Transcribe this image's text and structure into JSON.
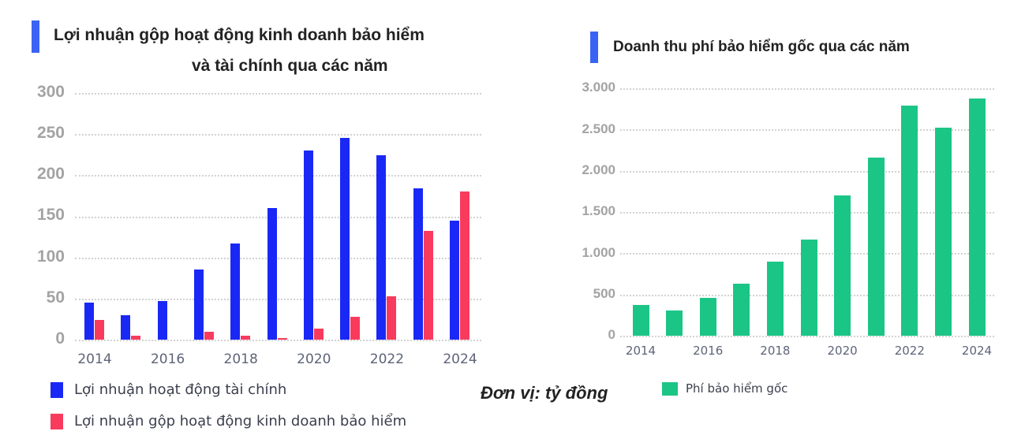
{
  "left_chart": {
    "title_line1": "Lợi nhuận gộp hoạt động kinh doanh bảo hiểm",
    "title_line2": "và tài chính qua các năm",
    "accent_color": "#3a63f5",
    "y_ticks": [
      "300",
      "250",
      "200",
      "150",
      "100",
      "50",
      "0"
    ],
    "x_ticks": [
      "2014",
      "2016",
      "2018",
      "2020",
      "2022",
      "2024"
    ],
    "legend": [
      {
        "label": "Lợi nhuận hoạt động tài chính",
        "color": "#1a28f5"
      },
      {
        "label": "Lợi nhuận gộp hoạt động kinh doanh bảo hiểm",
        "color": "#f83b5d"
      }
    ]
  },
  "right_chart": {
    "title": "Doanh thu phí bảo hiểm gốc qua các năm",
    "accent_color": "#3a63f5",
    "y_ticks": [
      "3.000",
      "2.500",
      "2.000",
      "1.500",
      "1.000",
      "500",
      "0"
    ],
    "x_ticks": [
      "2014",
      "2016",
      "2018",
      "2020",
      "2022",
      "2024"
    ],
    "legend": [
      {
        "label": "Phí bảo hiểm gốc",
        "color": "#1bc586"
      }
    ]
  },
  "unit_label": "Đơn vị: tỷ đồng",
  "chart_data": [
    {
      "type": "bar",
      "title": "Lợi nhuận gộp hoạt động kinh doanh bảo hiểm và tài chính qua các năm",
      "xlabel": "",
      "ylabel": "",
      "unit": "tỷ đồng",
      "ylim": [
        0,
        300
      ],
      "grid": true,
      "legend_position": "bottom",
      "categories": [
        "2014",
        "2015",
        "2016",
        "2017",
        "2018",
        "2019",
        "2020",
        "2021",
        "2022",
        "2023",
        "2024"
      ],
      "series": [
        {
          "name": "Lợi nhuận hoạt động tài chính",
          "color": "#1a28f5",
          "values": [
            45,
            30,
            47,
            85,
            117,
            160,
            230,
            245,
            224,
            184,
            145
          ]
        },
        {
          "name": "Lợi nhuận gộp hoạt động kinh doanh bảo hiểm",
          "color": "#f83b5d",
          "values": [
            24,
            5,
            0,
            10,
            5,
            2,
            13,
            28,
            53,
            132,
            180
          ]
        }
      ]
    },
    {
      "type": "bar",
      "title": "Doanh thu phí bảo hiểm gốc qua các năm",
      "xlabel": "",
      "ylabel": "",
      "unit": "tỷ đồng",
      "ylim": [
        0,
        3000
      ],
      "grid": true,
      "legend_position": "bottom",
      "categories": [
        "2014",
        "2015",
        "2016",
        "2017",
        "2018",
        "2019",
        "2020",
        "2021",
        "2022",
        "2023",
        "2024"
      ],
      "series": [
        {
          "name": "Phí bảo hiểm gốc",
          "color": "#1bc586",
          "values": [
            375,
            310,
            455,
            630,
            900,
            1170,
            1700,
            2160,
            2790,
            2525,
            2875
          ]
        }
      ]
    }
  ]
}
